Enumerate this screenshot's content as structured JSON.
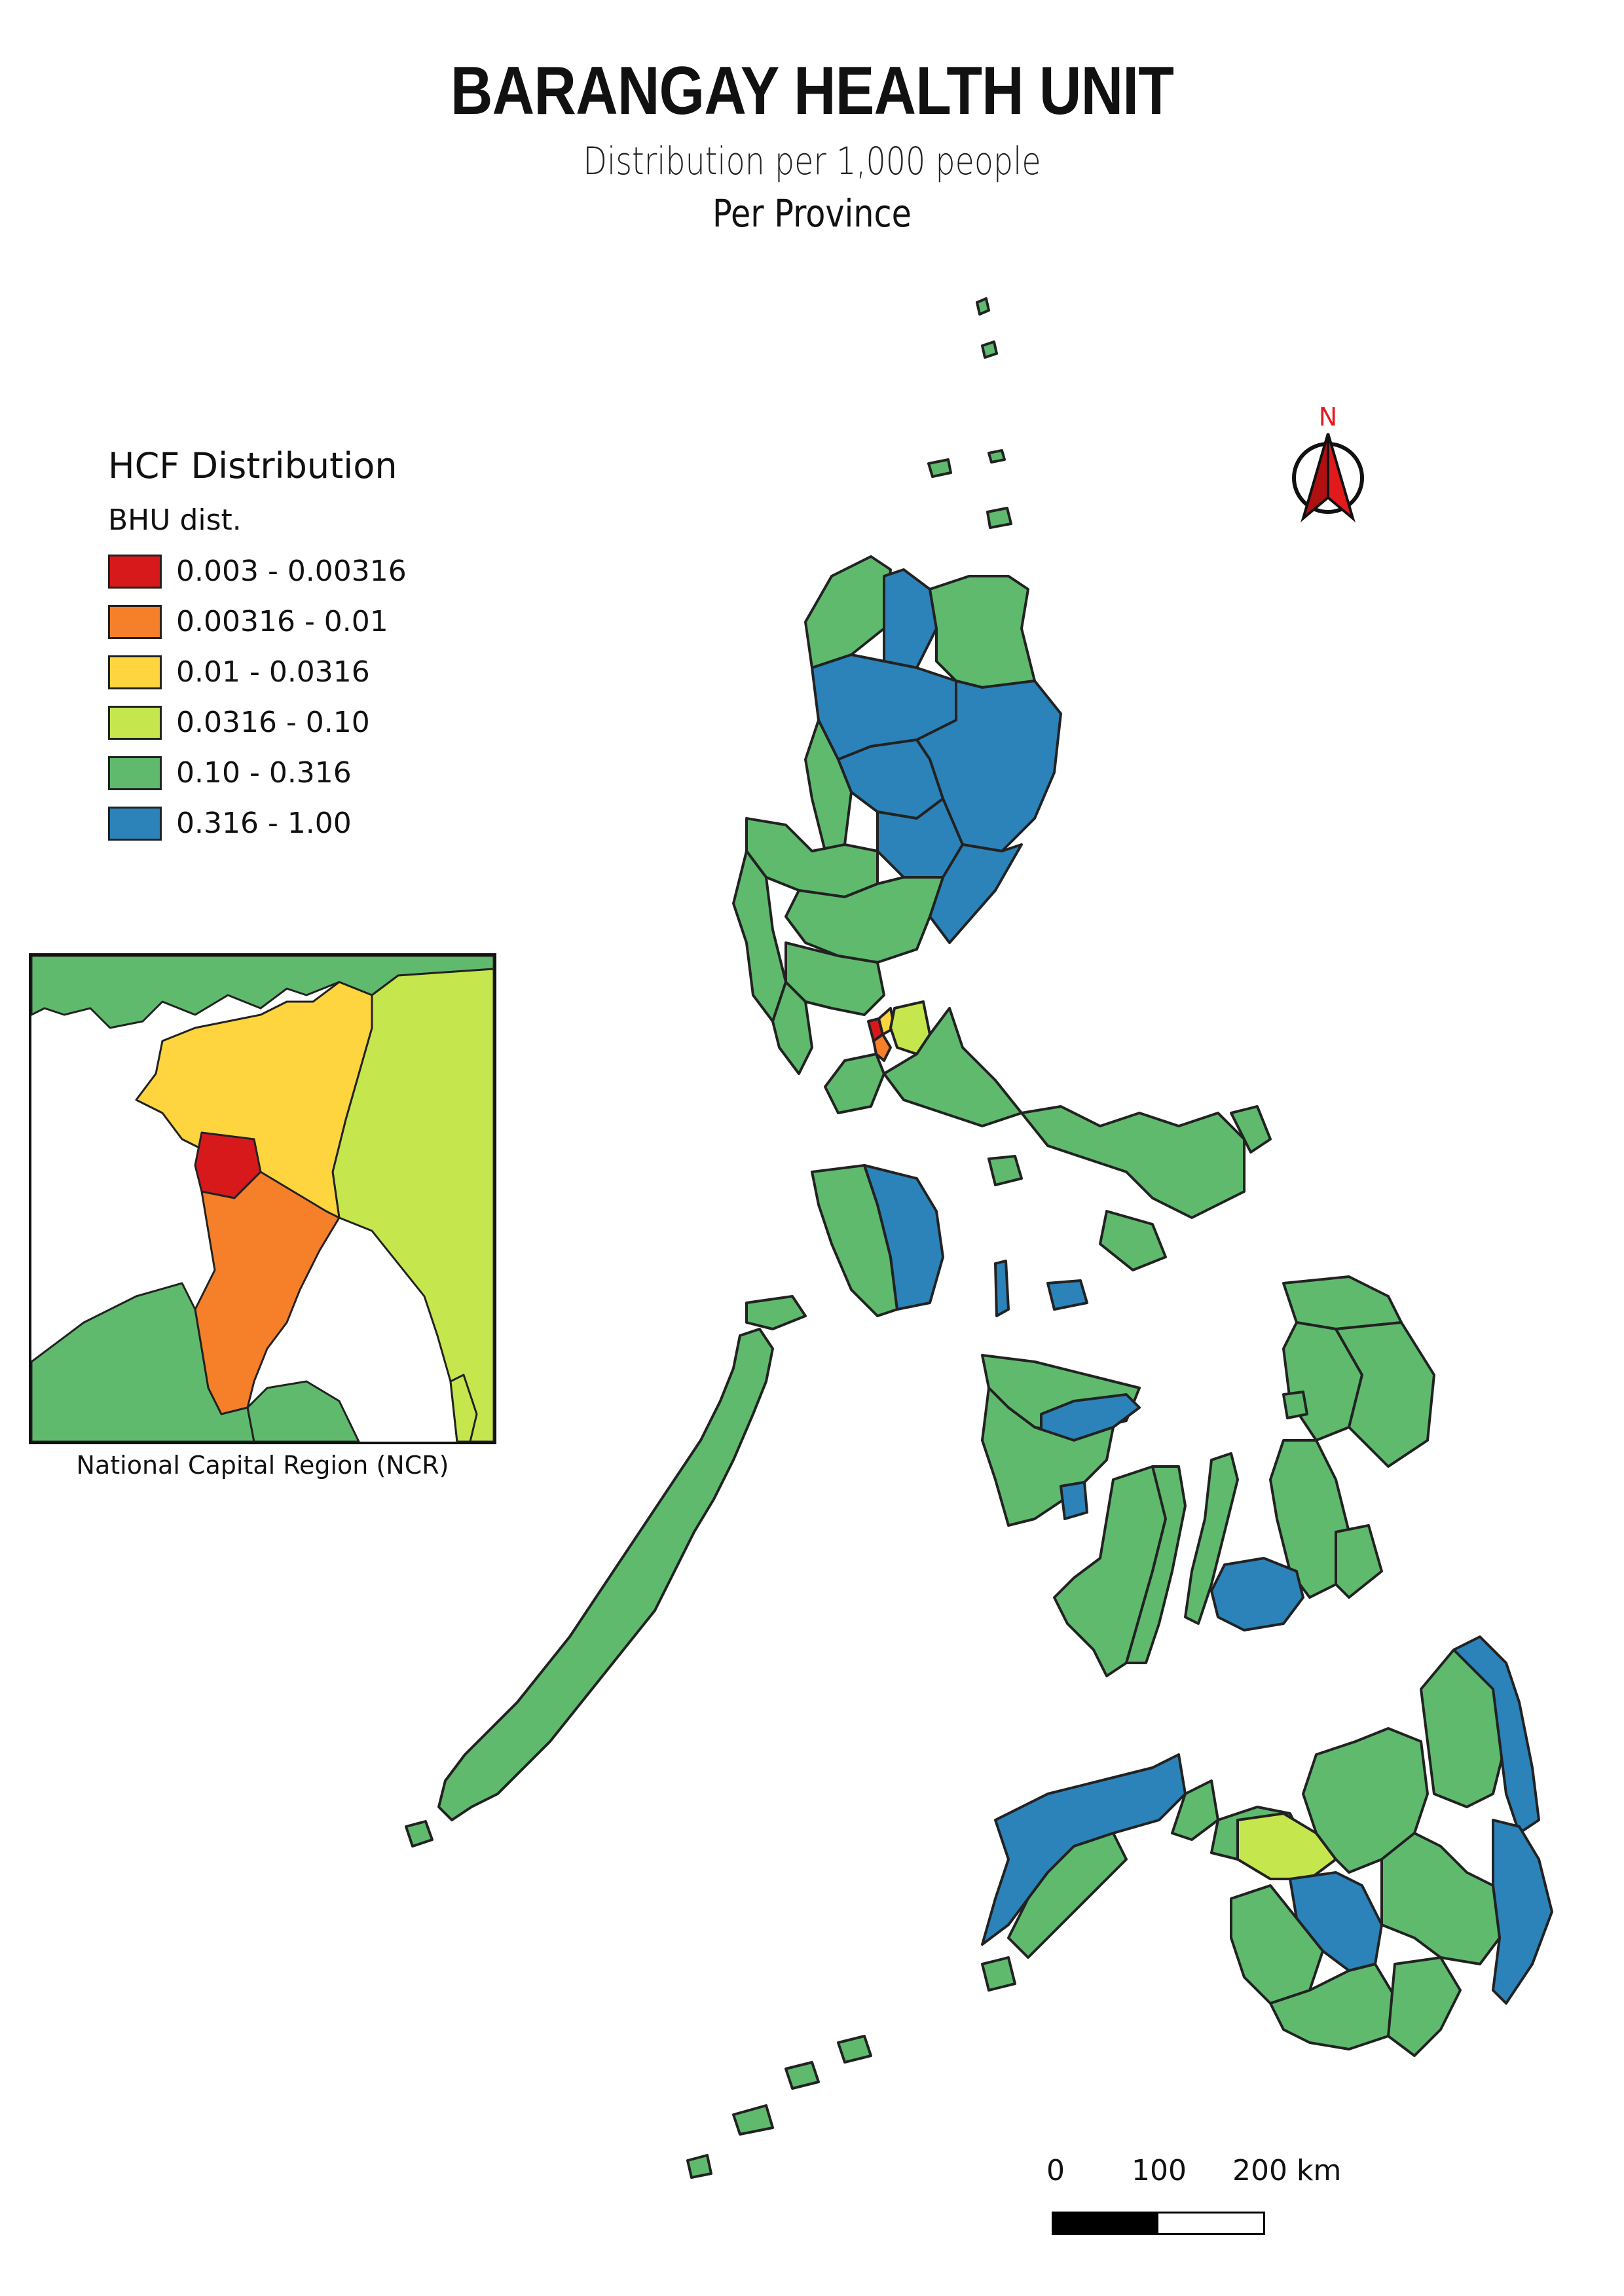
{
  "title": "BARANGAY HEALTH UNIT",
  "subtitle": "Distribution per 1,000 people",
  "subtitle2": "Per Province",
  "legend": {
    "title": "HCF Distribution",
    "subtitle": "BHU dist.",
    "classes": [
      {
        "label": "0.003 - 0.00316",
        "color": "#d7191c"
      },
      {
        "label": "0.00316 - 0.01",
        "color": "#f6802a"
      },
      {
        "label": "0.01 - 0.0316",
        "color": "#fed43f"
      },
      {
        "label": "0.0316 - 0.10",
        "color": "#c5e74d"
      },
      {
        "label": "0.10 - 0.316",
        "color": "#5fba6e"
      },
      {
        "label": "0.316 - 1.00",
        "color": "#2b83ba"
      }
    ]
  },
  "inset": {
    "caption": "National Capital Region (NCR)"
  },
  "north_arrow": {
    "label": "N",
    "color": "#e31a1c"
  },
  "scale": {
    "labels": [
      "0",
      "100",
      "200 km"
    ]
  }
}
